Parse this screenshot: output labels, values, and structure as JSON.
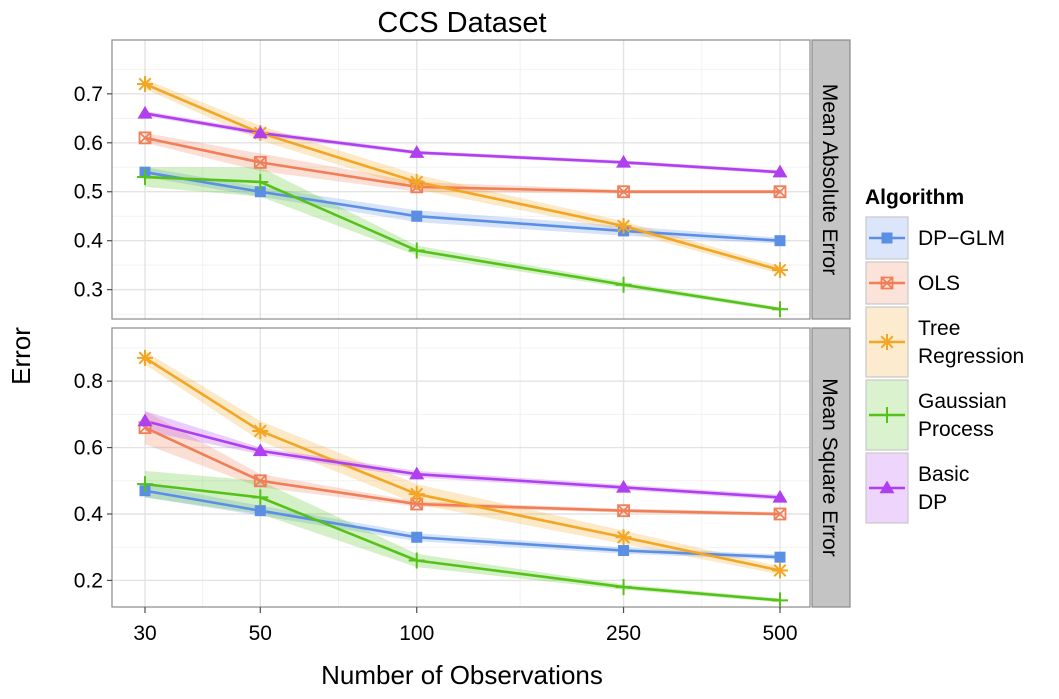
{
  "chart_data": {
    "type": "line",
    "title": "CCS Dataset",
    "xlabel": "Number of Observations",
    "ylabel": "Error",
    "x": [
      30,
      50,
      100,
      250,
      500
    ],
    "x_tick_labels": [
      "30",
      "50",
      "100",
      "250",
      "500"
    ],
    "x_scale": "log",
    "grid": true,
    "legend": {
      "title": "Algorithm",
      "position": "right"
    },
    "series_styles": [
      {
        "key": "dpglm",
        "name": "DP−GLM",
        "legend_lines": [
          "DP−GLM"
        ],
        "color": "#5b8fe6",
        "marker": "square"
      },
      {
        "key": "ols",
        "name": "OLS",
        "legend_lines": [
          "OLS"
        ],
        "color": "#f07f58",
        "marker": "boxed-x"
      },
      {
        "key": "tree",
        "name": "Tree Regression",
        "legend_lines": [
          "Tree",
          "Regression"
        ],
        "color": "#f2a623",
        "marker": "asterisk"
      },
      {
        "key": "gp",
        "name": "Gaussian Process",
        "legend_lines": [
          "Gaussian",
          "Process"
        ],
        "color": "#55c21a",
        "marker": "plus"
      },
      {
        "key": "basic",
        "name": "Basic DP",
        "legend_lines": [
          "Basic",
          "DP"
        ],
        "color": "#b03ff0",
        "marker": "triangle"
      }
    ],
    "facets": [
      {
        "strip": "Mean Absolute Error",
        "ylim": [
          0.24,
          0.81
        ],
        "yticks": [
          0.3,
          0.4,
          0.5,
          0.6,
          0.7
        ],
        "ytick_labels": [
          "0.3",
          "0.4",
          "0.5",
          "0.6",
          "0.7"
        ],
        "series": [
          {
            "key": "dpglm",
            "values": [
              0.54,
              0.5,
              0.45,
              0.42,
              0.4
            ],
            "band": [
              0.01,
              0.01,
              0.012,
              0.01,
              0.006
            ]
          },
          {
            "key": "ols",
            "values": [
              0.61,
              0.56,
              0.51,
              0.5,
              0.5
            ],
            "band": [
              0.01,
              0.018,
              0.01,
              0.004,
              0.004
            ]
          },
          {
            "key": "tree",
            "values": [
              0.72,
              0.62,
              0.52,
              0.43,
              0.34
            ],
            "band": [
              0.01,
              0.015,
              0.015,
              0.01,
              0.008
            ]
          },
          {
            "key": "gp",
            "values": [
              0.53,
              0.52,
              0.38,
              0.31,
              0.26
            ],
            "band": [
              0.02,
              0.03,
              0.01,
              0.006,
              0.004
            ]
          },
          {
            "key": "basic",
            "values": [
              0.66,
              0.62,
              0.58,
              0.56,
              0.54
            ],
            "band": [
              0.005,
              0.005,
              0.004,
              0.004,
              0.004
            ]
          }
        ]
      },
      {
        "strip": "Mean Square Error",
        "ylim": [
          0.12,
          0.96
        ],
        "yticks": [
          0.2,
          0.4,
          0.6,
          0.8
        ],
        "ytick_labels": [
          "0.2",
          "0.4",
          "0.6",
          "0.8"
        ],
        "series": [
          {
            "key": "dpglm",
            "values": [
              0.47,
              0.41,
              0.33,
              0.29,
              0.27
            ],
            "band": [
              0.02,
              0.015,
              0.012,
              0.01,
              0.008
            ]
          },
          {
            "key": "ols",
            "values": [
              0.66,
              0.5,
              0.43,
              0.41,
              0.4
            ],
            "band": [
              0.05,
              0.02,
              0.008,
              0.006,
              0.006
            ]
          },
          {
            "key": "tree",
            "values": [
              0.87,
              0.65,
              0.46,
              0.33,
              0.23
            ],
            "band": [
              0.02,
              0.03,
              0.03,
              0.02,
              0.012
            ]
          },
          {
            "key": "gp",
            "values": [
              0.49,
              0.45,
              0.26,
              0.18,
              0.14
            ],
            "band": [
              0.04,
              0.05,
              0.02,
              0.008,
              0.006
            ]
          },
          {
            "key": "basic",
            "values": [
              0.68,
              0.59,
              0.52,
              0.48,
              0.45
            ],
            "band": [
              0.03,
              0.01,
              0.01,
              0.008,
              0.008
            ]
          }
        ]
      }
    ]
  }
}
